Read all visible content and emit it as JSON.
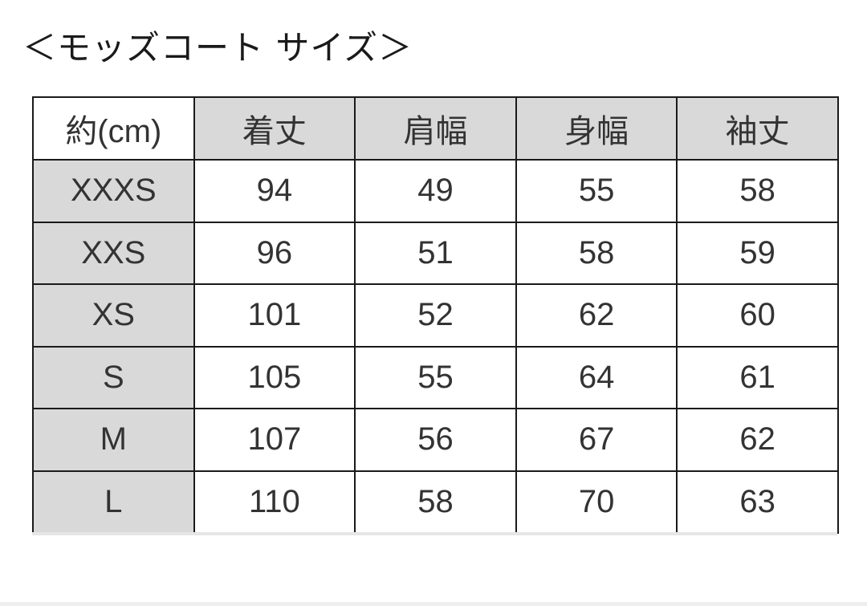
{
  "title": "＜モッズコート サイズ＞",
  "table": {
    "corner": "約(cm)",
    "headers": [
      "着丈",
      "肩幅",
      "身幅",
      "袖丈"
    ],
    "rows": [
      {
        "size": "XXXS",
        "values": [
          "94",
          "49",
          "55",
          "58"
        ]
      },
      {
        "size": "XXS",
        "values": [
          "96",
          "51",
          "58",
          "59"
        ]
      },
      {
        "size": "XS",
        "values": [
          "101",
          "52",
          "62",
          "60"
        ]
      },
      {
        "size": "S",
        "values": [
          "105",
          "55",
          "64",
          "61"
        ]
      },
      {
        "size": "M",
        "values": [
          "107",
          "56",
          "67",
          "62"
        ]
      },
      {
        "size": "L",
        "values": [
          "110",
          "58",
          "70",
          "63"
        ]
      }
    ]
  },
  "colors": {
    "header_fill": "#d9d9d9",
    "border": "#1a1a1a"
  }
}
